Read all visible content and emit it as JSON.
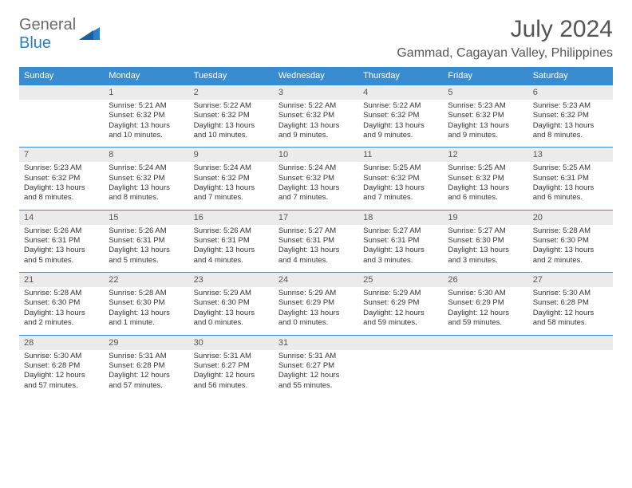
{
  "logo": {
    "text_general": "General",
    "text_blue": "Blue"
  },
  "title": {
    "month_year": "July 2024",
    "location": "Gammad, Cagayan Valley, Philippines"
  },
  "day_headers": [
    "Sunday",
    "Monday",
    "Tuesday",
    "Wednesday",
    "Thursday",
    "Friday",
    "Saturday"
  ],
  "colors": {
    "header_bg": "#3a8cd0",
    "header_text": "#ffffff",
    "daynum_bg": "#ebebeb",
    "daynum_text": "#555555",
    "border": "#3a8cd0",
    "body_text": "#333333",
    "logo_gray": "#6b6b6b",
    "logo_blue": "#2a7fc9"
  },
  "weeks": [
    [
      {
        "num": "",
        "sunrise": "",
        "sunset": "",
        "daylight": ""
      },
      {
        "num": "1",
        "sunrise": "Sunrise: 5:21 AM",
        "sunset": "Sunset: 6:32 PM",
        "daylight": "Daylight: 13 hours and 10 minutes."
      },
      {
        "num": "2",
        "sunrise": "Sunrise: 5:22 AM",
        "sunset": "Sunset: 6:32 PM",
        "daylight": "Daylight: 13 hours and 10 minutes."
      },
      {
        "num": "3",
        "sunrise": "Sunrise: 5:22 AM",
        "sunset": "Sunset: 6:32 PM",
        "daylight": "Daylight: 13 hours and 9 minutes."
      },
      {
        "num": "4",
        "sunrise": "Sunrise: 5:22 AM",
        "sunset": "Sunset: 6:32 PM",
        "daylight": "Daylight: 13 hours and 9 minutes."
      },
      {
        "num": "5",
        "sunrise": "Sunrise: 5:23 AM",
        "sunset": "Sunset: 6:32 PM",
        "daylight": "Daylight: 13 hours and 9 minutes."
      },
      {
        "num": "6",
        "sunrise": "Sunrise: 5:23 AM",
        "sunset": "Sunset: 6:32 PM",
        "daylight": "Daylight: 13 hours and 8 minutes."
      }
    ],
    [
      {
        "num": "7",
        "sunrise": "Sunrise: 5:23 AM",
        "sunset": "Sunset: 6:32 PM",
        "daylight": "Daylight: 13 hours and 8 minutes."
      },
      {
        "num": "8",
        "sunrise": "Sunrise: 5:24 AM",
        "sunset": "Sunset: 6:32 PM",
        "daylight": "Daylight: 13 hours and 8 minutes."
      },
      {
        "num": "9",
        "sunrise": "Sunrise: 5:24 AM",
        "sunset": "Sunset: 6:32 PM",
        "daylight": "Daylight: 13 hours and 7 minutes."
      },
      {
        "num": "10",
        "sunrise": "Sunrise: 5:24 AM",
        "sunset": "Sunset: 6:32 PM",
        "daylight": "Daylight: 13 hours and 7 minutes."
      },
      {
        "num": "11",
        "sunrise": "Sunrise: 5:25 AM",
        "sunset": "Sunset: 6:32 PM",
        "daylight": "Daylight: 13 hours and 7 minutes."
      },
      {
        "num": "12",
        "sunrise": "Sunrise: 5:25 AM",
        "sunset": "Sunset: 6:32 PM",
        "daylight": "Daylight: 13 hours and 6 minutes."
      },
      {
        "num": "13",
        "sunrise": "Sunrise: 5:25 AM",
        "sunset": "Sunset: 6:31 PM",
        "daylight": "Daylight: 13 hours and 6 minutes."
      }
    ],
    [
      {
        "num": "14",
        "sunrise": "Sunrise: 5:26 AM",
        "sunset": "Sunset: 6:31 PM",
        "daylight": "Daylight: 13 hours and 5 minutes."
      },
      {
        "num": "15",
        "sunrise": "Sunrise: 5:26 AM",
        "sunset": "Sunset: 6:31 PM",
        "daylight": "Daylight: 13 hours and 5 minutes."
      },
      {
        "num": "16",
        "sunrise": "Sunrise: 5:26 AM",
        "sunset": "Sunset: 6:31 PM",
        "daylight": "Daylight: 13 hours and 4 minutes."
      },
      {
        "num": "17",
        "sunrise": "Sunrise: 5:27 AM",
        "sunset": "Sunset: 6:31 PM",
        "daylight": "Daylight: 13 hours and 4 minutes."
      },
      {
        "num": "18",
        "sunrise": "Sunrise: 5:27 AM",
        "sunset": "Sunset: 6:31 PM",
        "daylight": "Daylight: 13 hours and 3 minutes."
      },
      {
        "num": "19",
        "sunrise": "Sunrise: 5:27 AM",
        "sunset": "Sunset: 6:30 PM",
        "daylight": "Daylight: 13 hours and 3 minutes."
      },
      {
        "num": "20",
        "sunrise": "Sunrise: 5:28 AM",
        "sunset": "Sunset: 6:30 PM",
        "daylight": "Daylight: 13 hours and 2 minutes."
      }
    ],
    [
      {
        "num": "21",
        "sunrise": "Sunrise: 5:28 AM",
        "sunset": "Sunset: 6:30 PM",
        "daylight": "Daylight: 13 hours and 2 minutes."
      },
      {
        "num": "22",
        "sunrise": "Sunrise: 5:28 AM",
        "sunset": "Sunset: 6:30 PM",
        "daylight": "Daylight: 13 hours and 1 minute."
      },
      {
        "num": "23",
        "sunrise": "Sunrise: 5:29 AM",
        "sunset": "Sunset: 6:30 PM",
        "daylight": "Daylight: 13 hours and 0 minutes."
      },
      {
        "num": "24",
        "sunrise": "Sunrise: 5:29 AM",
        "sunset": "Sunset: 6:29 PM",
        "daylight": "Daylight: 13 hours and 0 minutes."
      },
      {
        "num": "25",
        "sunrise": "Sunrise: 5:29 AM",
        "sunset": "Sunset: 6:29 PM",
        "daylight": "Daylight: 12 hours and 59 minutes."
      },
      {
        "num": "26",
        "sunrise": "Sunrise: 5:30 AM",
        "sunset": "Sunset: 6:29 PM",
        "daylight": "Daylight: 12 hours and 59 minutes."
      },
      {
        "num": "27",
        "sunrise": "Sunrise: 5:30 AM",
        "sunset": "Sunset: 6:28 PM",
        "daylight": "Daylight: 12 hours and 58 minutes."
      }
    ],
    [
      {
        "num": "28",
        "sunrise": "Sunrise: 5:30 AM",
        "sunset": "Sunset: 6:28 PM",
        "daylight": "Daylight: 12 hours and 57 minutes."
      },
      {
        "num": "29",
        "sunrise": "Sunrise: 5:31 AM",
        "sunset": "Sunset: 6:28 PM",
        "daylight": "Daylight: 12 hours and 57 minutes."
      },
      {
        "num": "30",
        "sunrise": "Sunrise: 5:31 AM",
        "sunset": "Sunset: 6:27 PM",
        "daylight": "Daylight: 12 hours and 56 minutes."
      },
      {
        "num": "31",
        "sunrise": "Sunrise: 5:31 AM",
        "sunset": "Sunset: 6:27 PM",
        "daylight": "Daylight: 12 hours and 55 minutes."
      },
      {
        "num": "",
        "sunrise": "",
        "sunset": "",
        "daylight": ""
      },
      {
        "num": "",
        "sunrise": "",
        "sunset": "",
        "daylight": ""
      },
      {
        "num": "",
        "sunrise": "",
        "sunset": "",
        "daylight": ""
      }
    ]
  ]
}
